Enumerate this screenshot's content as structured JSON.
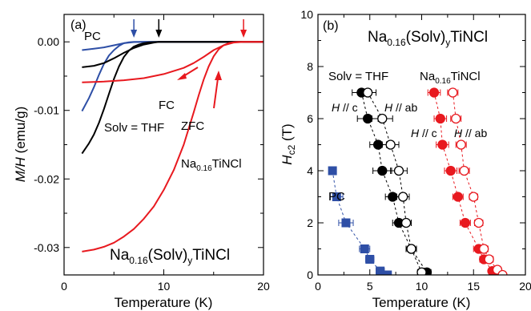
{
  "colors": {
    "red": "#e8191f",
    "black": "#000000",
    "blue": "#2e4fa6"
  },
  "chart_data": [
    {
      "type": "line",
      "panel_label": "(a)",
      "xlabel": "Temperature (K)",
      "ylabel_parts": {
        "main": "M/H",
        "unit": " (emu/g)"
      },
      "xlim": [
        0,
        20
      ],
      "ylim": [
        -0.034,
        0.004
      ],
      "xticks": [
        0,
        10,
        20
      ],
      "xtick_labels": [
        "0",
        "10",
        "20"
      ],
      "yticks": [
        0,
        -0.01,
        -0.02,
        -0.03
      ],
      "ytick_labels": [
        "0.00",
        "-0.01",
        "-0.02",
        "-0.03"
      ],
      "series": [
        {
          "name": "PC ZFC",
          "color": "#2e4fa6",
          "x": [
            1.8,
            2.5,
            3,
            3.5,
            4,
            4.5,
            5,
            5.5,
            6,
            6.5,
            7,
            8,
            9,
            10,
            20
          ],
          "y": [
            -0.0101,
            -0.0082,
            -0.0066,
            -0.0048,
            -0.0032,
            -0.002,
            -0.0012,
            -0.0006,
            -0.0002,
            -6e-05,
            0,
            0,
            0,
            0,
            0
          ]
        },
        {
          "name": "PC FC",
          "color": "#2e4fa6",
          "x": [
            1.8,
            3,
            4,
            5,
            6,
            7,
            8,
            20
          ],
          "y": [
            -0.0012,
            -0.001,
            -0.0008,
            -0.0005,
            -0.0002,
            -3e-05,
            0,
            0
          ]
        },
        {
          "name": "THF ZFC",
          "color": "#000000",
          "x": [
            1.8,
            2.5,
            3,
            3.5,
            4,
            4.5,
            5,
            5.5,
            6,
            6.5,
            7,
            7.5,
            8,
            8.5,
            9,
            9.5,
            10,
            20
          ],
          "y": [
            -0.0163,
            -0.0148,
            -0.0135,
            -0.0118,
            -0.0098,
            -0.0076,
            -0.0054,
            -0.0036,
            -0.0022,
            -0.0013,
            -0.0007,
            -0.0004,
            -0.0002,
            -8e-05,
            -3e-05,
            0,
            0,
            0
          ]
        },
        {
          "name": "THF FC",
          "color": "#000000",
          "x": [
            1.8,
            3,
            4,
            5,
            6,
            7,
            8,
            9,
            9.5,
            20
          ],
          "y": [
            -0.0037,
            -0.0035,
            -0.0031,
            -0.0024,
            -0.0016,
            -0.0009,
            -0.0004,
            -0.0001,
            0,
            0
          ]
        },
        {
          "name": "TiNCl ZFC",
          "color": "#e8191f",
          "x": [
            1.8,
            3,
            4,
            5,
            6,
            7,
            8,
            9,
            10,
            11,
            12,
            13,
            13.5,
            14,
            14.5,
            15,
            15.5,
            16,
            16.5,
            17,
            17.5,
            18,
            20
          ],
          "y": [
            -0.0306,
            -0.0303,
            -0.0299,
            -0.0293,
            -0.0284,
            -0.0273,
            -0.0258,
            -0.024,
            -0.0216,
            -0.0187,
            -0.015,
            -0.0103,
            -0.0078,
            -0.0055,
            -0.0036,
            -0.0021,
            -0.0011,
            -0.0005,
            -0.0002,
            -6e-05,
            -1e-05,
            0,
            0
          ]
        },
        {
          "name": "TiNCl FC",
          "color": "#e8191f",
          "x": [
            1.8,
            4,
            6,
            8,
            10,
            12,
            13,
            14,
            15,
            16,
            17,
            18,
            20
          ],
          "y": [
            -0.0059,
            -0.0058,
            -0.0056,
            -0.0053,
            -0.0047,
            -0.0038,
            -0.0031,
            -0.0022,
            -0.0012,
            -0.0005,
            -0.0001,
            0,
            0
          ]
        }
      ],
      "annotations": {
        "pc": "PC",
        "fc": "FC",
        "zfc": "ZFC",
        "solv_thf": "Solv = THF",
        "compound_bottom": {
          "pre": "Na",
          "sub1": "0.16",
          "mid": "(Solv)",
          "sub2": "y",
          "post": "TiNCl"
        },
        "compound_red": {
          "pre": "Na",
          "sub1": "0.16",
          "post": "TiNCl"
        }
      },
      "tc_arrows": [
        {
          "x": 7.0,
          "color": "#2e4fa6"
        },
        {
          "x": 9.5,
          "color": "#000000"
        },
        {
          "x": 18.0,
          "color": "#e8191f"
        }
      ]
    },
    {
      "type": "scatter",
      "panel_label": "(b)",
      "xlabel": "Temperature (K)",
      "ylabel_parts": {
        "main": "H",
        "sub": "c2",
        "unit": " (T)"
      },
      "xlim": [
        0,
        20
      ],
      "ylim": [
        0,
        10
      ],
      "xticks": [
        0,
        5,
        10,
        15,
        20
      ],
      "xtick_labels": [
        "0",
        "5",
        "10",
        "15",
        "20"
      ],
      "yticks": [
        0,
        2,
        4,
        6,
        8,
        10
      ],
      "ytick_labels": [
        "0",
        "2",
        "4",
        "6",
        "8",
        "10"
      ],
      "series": [
        {
          "name": "PC",
          "marker": "square",
          "filled": true,
          "color": "#2e4fa6",
          "points": [
            [
              1.4,
              4.0,
              0
            ],
            [
              1.8,
              3.0,
              0.6
            ],
            [
              2.7,
              2.0,
              0.7
            ],
            [
              4.5,
              1.0,
              0.5
            ],
            [
              5.0,
              0.6,
              0.4
            ],
            [
              6.0,
              0.15,
              0.4
            ],
            [
              6.7,
              0.0,
              0.3
            ]
          ]
        },
        {
          "name": "THF H//c",
          "marker": "circle",
          "filled": true,
          "color": "#000000",
          "points": [
            [
              4.2,
              7.0,
              0.9
            ],
            [
              4.8,
              6.0,
              1.0
            ],
            [
              5.8,
              5.0,
              0.8
            ],
            [
              6.2,
              4.0,
              0.9
            ],
            [
              7.2,
              3.0,
              0.7
            ],
            [
              7.8,
              2.0,
              0.6
            ],
            [
              9.0,
              1.0,
              0.5
            ],
            [
              10.5,
              0.1,
              0.4
            ]
          ]
        },
        {
          "name": "THF H//ab",
          "marker": "circle",
          "filled": false,
          "color": "#000000",
          "points": [
            [
              4.8,
              7.0,
              0.8
            ],
            [
              6.2,
              6.0,
              1.0
            ],
            [
              7.0,
              5.0,
              0.8
            ],
            [
              7.8,
              4.0,
              0.8
            ],
            [
              8.2,
              3.0,
              0.6
            ],
            [
              8.5,
              2.0,
              0.5
            ],
            [
              9.0,
              1.0,
              0.5
            ],
            [
              10.0,
              0.1,
              0.4
            ]
          ]
        },
        {
          "name": "TiNCl H//c",
          "marker": "circle",
          "filled": true,
          "color": "#e8191f",
          "points": [
            [
              11.2,
              7.0,
              0.6
            ],
            [
              11.8,
              6.0,
              0.6
            ],
            [
              12.0,
              5.0,
              0.6
            ],
            [
              12.8,
              4.0,
              0.6
            ],
            [
              13.5,
              3.0,
              0.5
            ],
            [
              14.2,
              2.0,
              0.5
            ],
            [
              15.5,
              1.0,
              0.5
            ],
            [
              16.0,
              0.6,
              0.4
            ],
            [
              16.8,
              0.15,
              0.3
            ],
            [
              17.3,
              0.0,
              0.3
            ]
          ]
        },
        {
          "name": "TiNCl H//ab",
          "marker": "circle",
          "filled": false,
          "color": "#e8191f",
          "points": [
            [
              13.0,
              7.0,
              0.5
            ],
            [
              13.3,
              6.0,
              0.5
            ],
            [
              13.8,
              5.0,
              0.5
            ],
            [
              14.1,
              4.0,
              0.5
            ],
            [
              15.0,
              3.0,
              0.4
            ],
            [
              15.5,
              2.0,
              0.4
            ],
            [
              16.0,
              1.0,
              0.4
            ],
            [
              16.5,
              0.6,
              0.4
            ],
            [
              17.3,
              0.2,
              0.3
            ],
            [
              17.8,
              0.0,
              0.3
            ]
          ]
        }
      ],
      "annotations": {
        "pc": "PC",
        "solv_thf": "Solv = THF",
        "h_c": {
          "h": "H",
          "rel": " // c"
        },
        "h_ab": {
          "h": "H",
          "rel": " // ab"
        },
        "compound_top": {
          "pre": "Na",
          "sub1": "0.16",
          "mid": "(Solv)",
          "sub2": "y",
          "post": "TiNCl"
        },
        "compound_red": {
          "pre": "Na",
          "sub1": "0.16",
          "post": "TiNCl"
        }
      }
    }
  ]
}
